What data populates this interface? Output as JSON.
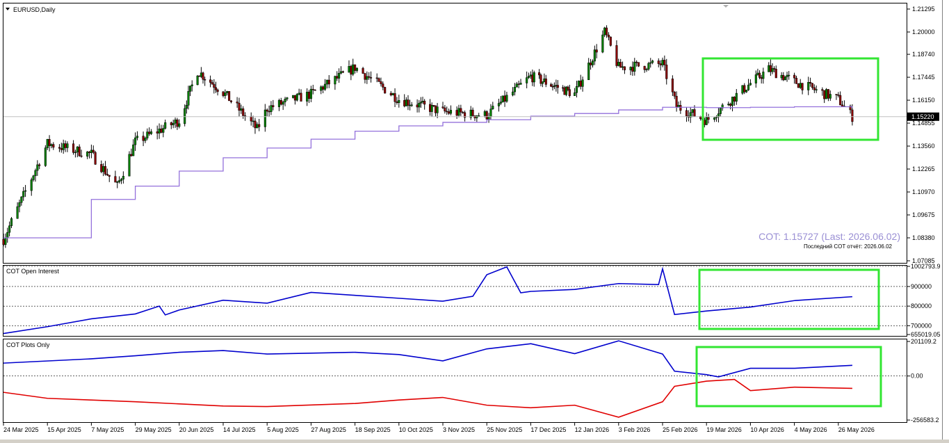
{
  "window": {
    "symbol_title": "EURUSD,Daily",
    "dropdown_icon": "triangle-down-icon"
  },
  "panes": {
    "price": {
      "ticks": [
        "1.21295",
        "1.20000",
        "1.18740",
        "1.17445",
        "1.16150",
        "1.14855",
        "1.13560",
        "1.12265",
        "1.10970",
        "1.09675",
        "1.08380",
        "1.07085"
      ],
      "current_price": "1.15220",
      "cot_main_label": "COT: 1.15727 (Last: 2026.06.02)",
      "cot_sub_label": "Последний COT отчёт: 2026.06.02"
    },
    "open_interest": {
      "title": "COT Open Interest",
      "ticks": [
        "1002793.9",
        "900000",
        "800000",
        "700000",
        "655019.05"
      ]
    },
    "plots_only": {
      "title": "COT Plots Only",
      "ticks": [
        "201109.2",
        "0.00",
        "-256583.2"
      ]
    }
  },
  "time_axis": {
    "labels": [
      "24 Mar 2025",
      "15 Apr 2025",
      "7 May 2025",
      "29 May 2025",
      "20 Jun 2025",
      "14 Jul 2025",
      "5 Aug 2025",
      "27 Aug 2025",
      "18 Sep 2025",
      "10 Oct 2025",
      "3 Nov 2025",
      "25 Nov 2025",
      "17 Dec 2025",
      "12 Jan 2026",
      "3 Feb 2026",
      "25 Feb 2026",
      "19 Mar 2026",
      "10 Apr 2026",
      "4 May 2026",
      "26 May 2026"
    ]
  },
  "colors": {
    "bull_candle": "#000000",
    "bear_candle": "#000000",
    "bull_fill": "#008000",
    "bear_fill": "#8b0000",
    "cot_price_line": "#9370db",
    "cot_label": "#9a8fd4",
    "open_interest_line": "#0000cd",
    "net_long_line": "#0000cd",
    "net_short_line": "#e00000",
    "highlight_box": "#32e632"
  },
  "chart_data": [
    {
      "type": "candlestick",
      "title": "EURUSD,Daily",
      "ylim": [
        1.07085,
        1.21295
      ],
      "anchors": [
        {
          "date": "24 Mar 2025",
          "close": 1.083
        },
        {
          "date": "15 Apr 2025",
          "close": 1.137
        },
        {
          "date": "7 May 2025",
          "close": 1.131
        },
        {
          "date": "20 May 2025",
          "close": 1.113
        },
        {
          "date": "29 May 2025",
          "close": 1.138
        },
        {
          "date": "20 Jun 2025",
          "close": 1.15
        },
        {
          "date": "30 Jun 2025",
          "close": 1.178
        },
        {
          "date": "14 Jul 2025",
          "close": 1.166
        },
        {
          "date": "31 Jul 2025",
          "close": 1.145
        },
        {
          "date": "5 Aug 2025",
          "close": 1.157
        },
        {
          "date": "27 Aug 2025",
          "close": 1.165
        },
        {
          "date": "18 Sep 2025",
          "close": 1.18
        },
        {
          "date": "10 Oct 2025",
          "close": 1.162
        },
        {
          "date": "3 Nov 2025",
          "close": 1.155
        },
        {
          "date": "25 Nov 2025",
          "close": 1.153
        },
        {
          "date": "17 Dec 2025",
          "close": 1.175
        },
        {
          "date": "12 Jan 2026",
          "close": 1.165
        },
        {
          "date": "27 Jan 2026",
          "close": 1.2
        },
        {
          "date": "3 Feb 2026",
          "close": 1.18
        },
        {
          "date": "25 Feb 2026",
          "close": 1.182
        },
        {
          "date": "4 Mar 2026",
          "close": 1.158
        },
        {
          "date": "19 Mar 2026",
          "close": 1.15
        },
        {
          "date": "10 Apr 2026",
          "close": 1.171
        },
        {
          "date": "20 Apr 2026",
          "close": 1.179
        },
        {
          "date": "4 May 2026",
          "close": 1.172
        },
        {
          "date": "26 May 2026",
          "close": 1.162
        },
        {
          "date": "2 Jun 2026",
          "close": 1.1522
        }
      ],
      "series": [
        {
          "name": "COT",
          "type": "step-line",
          "points": [
            {
              "date": "24 Mar 2025",
              "value": 1.0838
            },
            {
              "date": "7 May 2025",
              "value": 1.1055
            },
            {
              "date": "29 May 2025",
              "value": 1.113
            },
            {
              "date": "20 Jun 2025",
              "value": 1.1215
            },
            {
              "date": "14 Jul 2025",
              "value": 1.129
            },
            {
              "date": "5 Aug 2025",
              "value": 1.1345
            },
            {
              "date": "27 Aug 2025",
              "value": 1.1395
            },
            {
              "date": "18 Sep 2025",
              "value": 1.144
            },
            {
              "date": "10 Oct 2025",
              "value": 1.147
            },
            {
              "date": "3 Nov 2025",
              "value": 1.149
            },
            {
              "date": "25 Nov 2025",
              "value": 1.1505
            },
            {
              "date": "17 Dec 2025",
              "value": 1.1525
            },
            {
              "date": "12 Jan 2026",
              "value": 1.154
            },
            {
              "date": "3 Feb 2026",
              "value": 1.156
            },
            {
              "date": "25 Feb 2026",
              "value": 1.1575
            },
            {
              "date": "19 Mar 2026",
              "value": 1.1573
            },
            {
              "date": "10 Apr 2026",
              "value": 1.1575
            },
            {
              "date": "4 May 2026",
              "value": 1.1578
            },
            {
              "date": "2 Jun 2026",
              "value": 1.15727
            }
          ]
        }
      ]
    },
    {
      "type": "line",
      "title": "COT Open Interest",
      "ylim": [
        655019.05,
        1002793.9
      ],
      "series": [
        {
          "name": "",
          "points": [
            {
              "date": "24 Mar 2025",
              "value": 660000
            },
            {
              "date": "15 Apr 2025",
              "value": 695000
            },
            {
              "date": "7 May 2025",
              "value": 735000
            },
            {
              "date": "29 May 2025",
              "value": 760000
            },
            {
              "date": "10 Jun 2025",
              "value": 800000
            },
            {
              "date": "13 Jun 2025",
              "value": 755000
            },
            {
              "date": "20 Jun 2025",
              "value": 780000
            },
            {
              "date": "14 Jul 2025",
              "value": 830000
            },
            {
              "date": "5 Aug 2025",
              "value": 815000
            },
            {
              "date": "27 Aug 2025",
              "value": 870000
            },
            {
              "date": "18 Sep 2025",
              "value": 855000
            },
            {
              "date": "10 Oct 2025",
              "value": 840000
            },
            {
              "date": "3 Nov 2025",
              "value": 825000
            },
            {
              "date": "18 Nov 2025",
              "value": 850000
            },
            {
              "date": "25 Nov 2025",
              "value": 960000
            },
            {
              "date": "5 Dec 2025",
              "value": 1000000
            },
            {
              "date": "12 Dec 2025",
              "value": 868000
            },
            {
              "date": "17 Dec 2025",
              "value": 875000
            },
            {
              "date": "12 Jan 2026",
              "value": 885000
            },
            {
              "date": "3 Feb 2026",
              "value": 915000
            },
            {
              "date": "23 Feb 2026",
              "value": 910000
            },
            {
              "date": "25 Feb 2026",
              "value": 990000
            },
            {
              "date": "3 Mar 2026",
              "value": 757000
            },
            {
              "date": "19 Mar 2026",
              "value": 775000
            },
            {
              "date": "10 Apr 2026",
              "value": 795000
            },
            {
              "date": "4 May 2026",
              "value": 828000
            },
            {
              "date": "2 Jun 2026",
              "value": 848000
            }
          ]
        }
      ]
    },
    {
      "type": "line",
      "title": "COT Plots Only",
      "ylim": [
        -256583.2,
        201109.2
      ],
      "series": [
        {
          "name": "",
          "color": "blue",
          "points": [
            {
              "date": "24 Mar 2025",
              "value": 75000
            },
            {
              "date": "7 May 2025",
              "value": 100000
            },
            {
              "date": "29 May 2025",
              "value": 118000
            },
            {
              "date": "20 Jun 2025",
              "value": 138000
            },
            {
              "date": "14 Jul 2025",
              "value": 148000
            },
            {
              "date": "5 Aug 2025",
              "value": 128000
            },
            {
              "date": "27 Aug 2025",
              "value": 133000
            },
            {
              "date": "18 Sep 2025",
              "value": 138000
            },
            {
              "date": "10 Oct 2025",
              "value": 125000
            },
            {
              "date": "3 Nov 2025",
              "value": 88000
            },
            {
              "date": "25 Nov 2025",
              "value": 158000
            },
            {
              "date": "17 Dec 2025",
              "value": 188000
            },
            {
              "date": "12 Jan 2026",
              "value": 130000
            },
            {
              "date": "3 Feb 2026",
              "value": 205000
            },
            {
              "date": "25 Feb 2026",
              "value": 128000
            },
            {
              "date": "3 Mar 2026",
              "value": 28000
            },
            {
              "date": "19 Mar 2026",
              "value": 8000
            },
            {
              "date": "25 Mar 2026",
              "value": -5000
            },
            {
              "date": "10 Apr 2026",
              "value": 45000
            },
            {
              "date": "4 May 2026",
              "value": 45000
            },
            {
              "date": "2 Jun 2026",
              "value": 62000
            }
          ]
        },
        {
          "name": "",
          "color": "red",
          "points": [
            {
              "date": "24 Mar 2025",
              "value": -95000
            },
            {
              "date": "15 Apr 2025",
              "value": -130000
            },
            {
              "date": "7 May 2025",
              "value": -140000
            },
            {
              "date": "29 May 2025",
              "value": -150000
            },
            {
              "date": "14 Jul 2025",
              "value": -175000
            },
            {
              "date": "5 Aug 2025",
              "value": -178000
            },
            {
              "date": "18 Sep 2025",
              "value": -160000
            },
            {
              "date": "10 Oct 2025",
              "value": -140000
            },
            {
              "date": "3 Nov 2025",
              "value": -125000
            },
            {
              "date": "25 Nov 2025",
              "value": -170000
            },
            {
              "date": "17 Dec 2025",
              "value": -185000
            },
            {
              "date": "12 Jan 2026",
              "value": -170000
            },
            {
              "date": "3 Feb 2026",
              "value": -240000
            },
            {
              "date": "25 Feb 2026",
              "value": -150000
            },
            {
              "date": "3 Mar 2026",
              "value": -60000
            },
            {
              "date": "19 Mar 2026",
              "value": -30000
            },
            {
              "date": "2 Apr 2026",
              "value": -20000
            },
            {
              "date": "10 Apr 2026",
              "value": -85000
            },
            {
              "date": "4 May 2026",
              "value": -65000
            },
            {
              "date": "2 Jun 2026",
              "value": -72000
            }
          ]
        }
      ]
    }
  ]
}
